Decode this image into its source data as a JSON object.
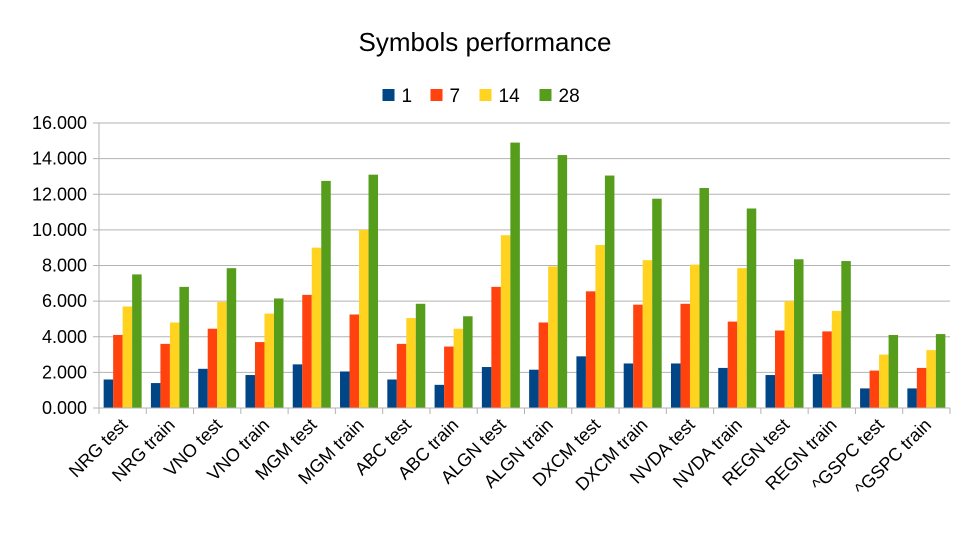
{
  "chart_data": {
    "type": "bar",
    "title": "Symbols performance",
    "xlabel": "",
    "ylabel": "",
    "ylim": [
      0,
      16
    ],
    "yticks": [
      "0.000",
      "2.000",
      "4.000",
      "6.000",
      "8.000",
      "10.000",
      "12.000",
      "14.000",
      "16.000"
    ],
    "grid": true,
    "legend_position": "top",
    "categories": [
      "NRG test",
      "NRG train",
      "VNO test",
      "VNO train",
      "MGM test",
      "MGM train",
      "ABC test",
      "ABC train",
      "ALGN test",
      "ALGN train",
      "DXCM test",
      "DXCM train",
      "NVDA test",
      "NVDA train",
      "REGN test",
      "REGN train",
      "^GSPC test",
      "^GSPC train"
    ],
    "series": [
      {
        "name": "1",
        "color": "#004586",
        "values": [
          1.6,
          1.4,
          2.2,
          1.85,
          2.45,
          2.05,
          1.6,
          1.3,
          2.3,
          2.15,
          2.9,
          2.5,
          2.5,
          2.25,
          1.85,
          1.9,
          1.1,
          1.1
        ]
      },
      {
        "name": "7",
        "color": "#ff420e",
        "values": [
          4.1,
          3.6,
          4.45,
          3.7,
          6.35,
          5.25,
          3.6,
          3.45,
          6.8,
          4.8,
          6.55,
          5.8,
          5.85,
          4.85,
          4.35,
          4.3,
          2.1,
          2.25
        ]
      },
      {
        "name": "14",
        "color": "#ffd320",
        "values": [
          5.7,
          4.8,
          5.95,
          5.3,
          9.0,
          10.0,
          5.05,
          4.45,
          9.7,
          7.95,
          9.15,
          8.3,
          8.05,
          7.85,
          6.0,
          5.45,
          3.0,
          3.25
        ]
      },
      {
        "name": "28",
        "color": "#579d1c",
        "values": [
          7.5,
          6.8,
          7.85,
          6.15,
          12.75,
          13.1,
          5.85,
          5.15,
          14.9,
          14.2,
          13.05,
          11.75,
          12.35,
          11.2,
          8.35,
          8.25,
          4.1,
          4.15
        ]
      }
    ]
  }
}
